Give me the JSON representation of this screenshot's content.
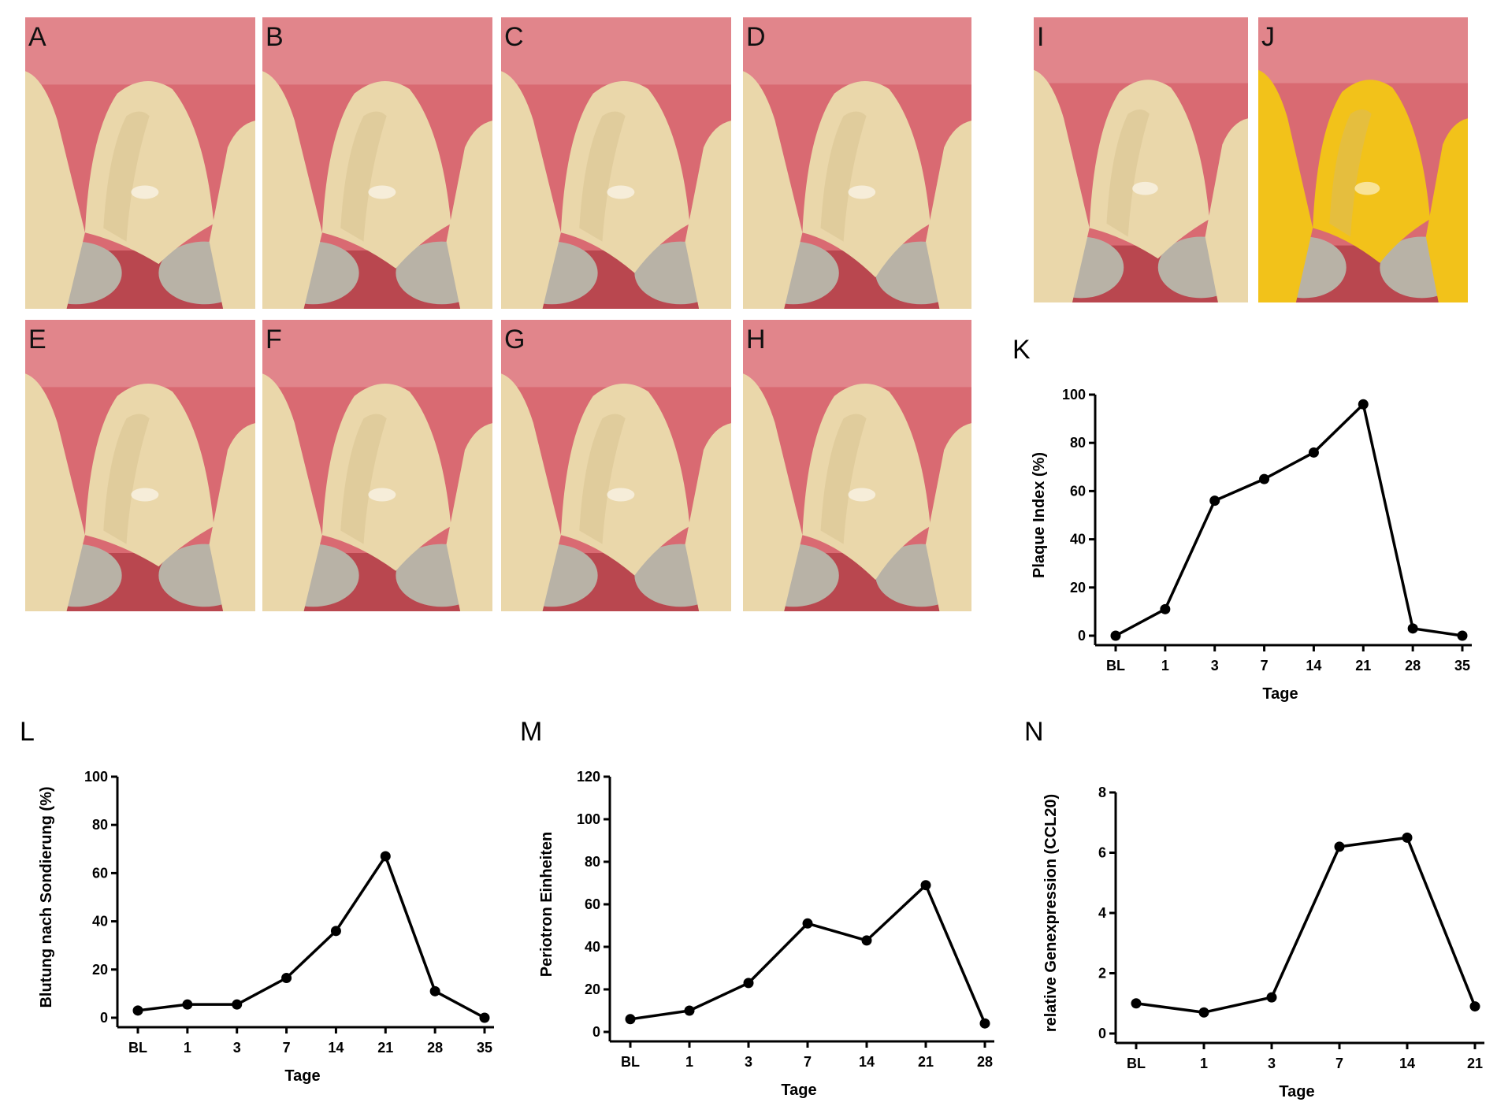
{
  "photos": [
    {
      "label": "A"
    },
    {
      "label": "B"
    },
    {
      "label": "C"
    },
    {
      "label": "D"
    },
    {
      "label": "E"
    },
    {
      "label": "F"
    },
    {
      "label": "G"
    },
    {
      "label": "H"
    },
    {
      "label": "I"
    },
    {
      "label": "J"
    }
  ],
  "colors": {
    "gum": "#d96a72",
    "gum_light": "#e79aa0",
    "gum_dark": "#b9474f",
    "tooth": "#ead7aa",
    "tooth_shade": "#cfb884",
    "lower_teeth": "#b8b2a6",
    "stain": "#f2c21a",
    "line": "#000000"
  },
  "chart_data": [
    {
      "panel": "K",
      "type": "line",
      "categories": [
        "BL",
        "1",
        "3",
        "7",
        "14",
        "21",
        "28",
        "35"
      ],
      "values": [
        0,
        11,
        56,
        65,
        76,
        96,
        3,
        0
      ],
      "xlabel": "Tage",
      "ylabel": "Plaque Index (%)",
      "ylim": [
        0,
        100
      ],
      "yticks": [
        "0",
        "20",
        "40",
        "60",
        "80",
        "100"
      ]
    },
    {
      "panel": "L",
      "type": "line",
      "categories": [
        "BL",
        "1",
        "3",
        "7",
        "14",
        "21",
        "28",
        "35"
      ],
      "values": [
        3,
        5.5,
        5.5,
        16.5,
        36,
        67,
        11,
        0
      ],
      "xlabel": "Tage",
      "ylabel": "Blutung nach Sondierung (%)",
      "ylim": [
        0,
        100
      ],
      "yticks": [
        "0",
        "20",
        "40",
        "60",
        "80",
        "100"
      ]
    },
    {
      "panel": "M",
      "type": "line",
      "categories": [
        "BL",
        "1",
        "3",
        "7",
        "14",
        "21",
        "28"
      ],
      "values": [
        6,
        10,
        23,
        51,
        43,
        69,
        4
      ],
      "xlabel": "Tage",
      "ylabel": "Periotron Einheiten",
      "ylim": [
        0,
        120
      ],
      "yticks": [
        "0",
        "20",
        "40",
        "60",
        "80",
        "100",
        "120"
      ]
    },
    {
      "panel": "N",
      "type": "line",
      "categories": [
        "BL",
        "1",
        "3",
        "7",
        "14",
        "21"
      ],
      "values": [
        1.0,
        0.7,
        1.2,
        6.2,
        6.5,
        0.9
      ],
      "xlabel": "Tage",
      "ylabel": "relative Genexpression (CCL20)",
      "ylim": [
        0,
        8
      ],
      "yticks": [
        "0",
        "2",
        "4",
        "6",
        "8"
      ]
    }
  ]
}
